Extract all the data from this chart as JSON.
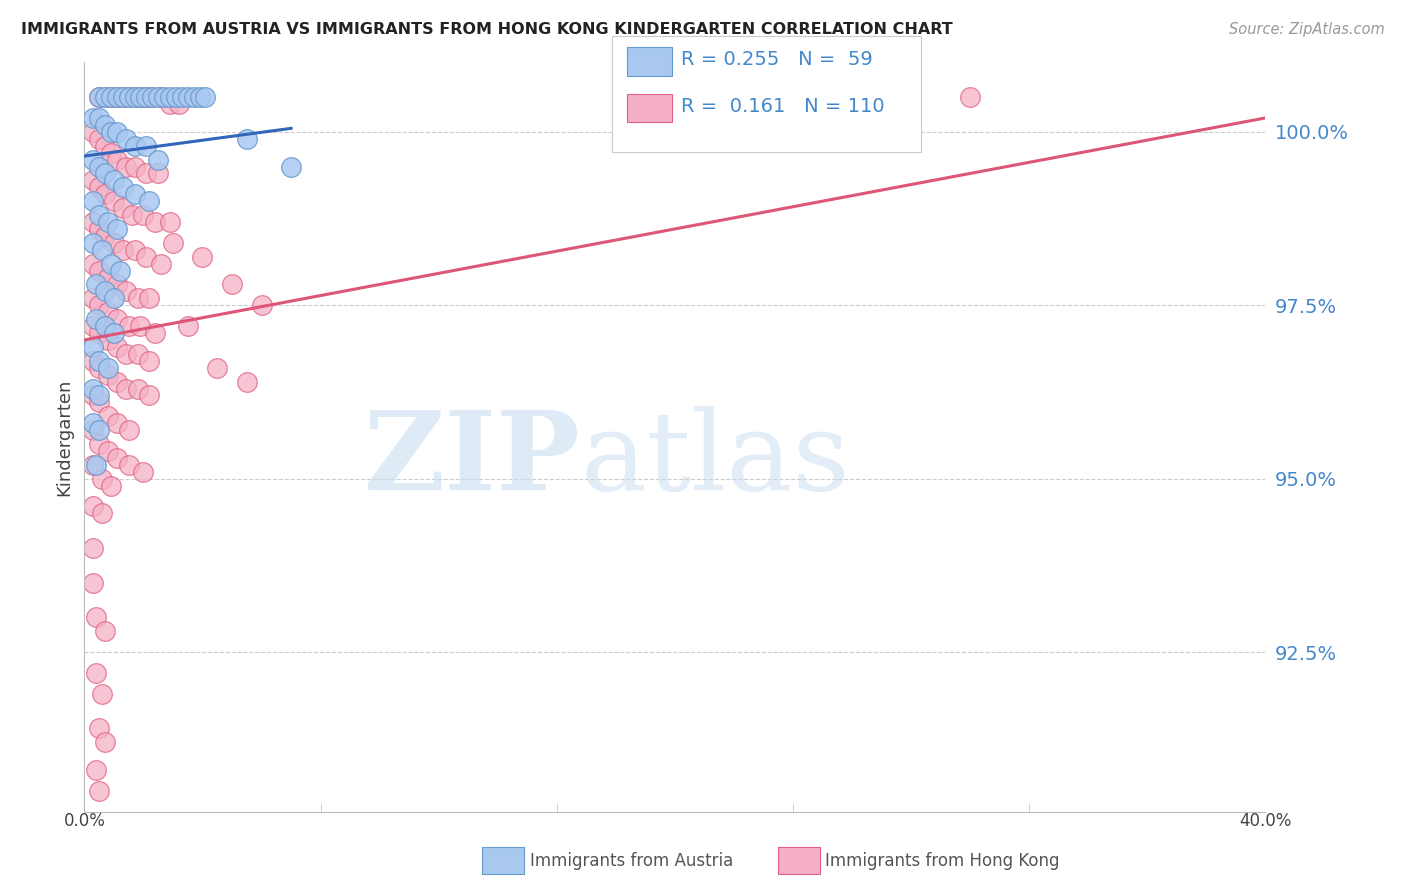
{
  "title": "IMMIGRANTS FROM AUSTRIA VS IMMIGRANTS FROM HONG KONG KINDERGARTEN CORRELATION CHART",
  "source": "Source: ZipAtlas.com",
  "ylabel": "Kindergarten",
  "xlim": [
    0.0,
    40.0
  ],
  "ylim": [
    90.2,
    101.0
  ],
  "ytick_vals": [
    92.5,
    95.0,
    97.5,
    100.0
  ],
  "austria_color": "#A8C8F0",
  "austria_edge": "#6699CC",
  "hongkong_color": "#F5B0C5",
  "hongkong_edge": "#E06080",
  "trendline_austria_color": "#3366BB",
  "trendline_hongkong_color": "#DD5577",
  "austria_trend": [
    0.0,
    99.65,
    7.0,
    100.05
  ],
  "hongkong_trend": [
    0.0,
    97.0,
    40.0,
    100.2
  ],
  "legend_text_color": "#4488CC",
  "watermark_color": "#C8DCF0",
  "austria_scatter": [
    [
      0.5,
      100.5
    ],
    [
      0.7,
      100.5
    ],
    [
      0.9,
      100.5
    ],
    [
      1.1,
      100.5
    ],
    [
      1.3,
      100.5
    ],
    [
      1.5,
      100.5
    ],
    [
      1.7,
      100.5
    ],
    [
      1.9,
      100.5
    ],
    [
      2.1,
      100.5
    ],
    [
      2.3,
      100.5
    ],
    [
      2.5,
      100.5
    ],
    [
      2.7,
      100.5
    ],
    [
      2.9,
      100.5
    ],
    [
      3.1,
      100.5
    ],
    [
      3.3,
      100.5
    ],
    [
      3.5,
      100.5
    ],
    [
      3.7,
      100.5
    ],
    [
      3.9,
      100.5
    ],
    [
      4.1,
      100.5
    ],
    [
      0.3,
      100.2
    ],
    [
      0.5,
      100.2
    ],
    [
      0.7,
      100.1
    ],
    [
      0.9,
      100.0
    ],
    [
      1.1,
      100.0
    ],
    [
      1.4,
      99.9
    ],
    [
      1.7,
      99.8
    ],
    [
      2.1,
      99.8
    ],
    [
      0.3,
      99.6
    ],
    [
      0.5,
      99.5
    ],
    [
      0.7,
      99.4
    ],
    [
      1.0,
      99.3
    ],
    [
      1.3,
      99.2
    ],
    [
      1.7,
      99.1
    ],
    [
      2.2,
      99.0
    ],
    [
      0.3,
      99.0
    ],
    [
      0.5,
      98.8
    ],
    [
      0.8,
      98.7
    ],
    [
      1.1,
      98.6
    ],
    [
      0.3,
      98.4
    ],
    [
      0.6,
      98.3
    ],
    [
      0.9,
      98.1
    ],
    [
      1.2,
      98.0
    ],
    [
      0.4,
      97.8
    ],
    [
      0.7,
      97.7
    ],
    [
      1.0,
      97.6
    ],
    [
      0.4,
      97.3
    ],
    [
      0.7,
      97.2
    ],
    [
      1.0,
      97.1
    ],
    [
      0.3,
      96.9
    ],
    [
      0.5,
      96.7
    ],
    [
      0.8,
      96.6
    ],
    [
      0.3,
      96.3
    ],
    [
      0.5,
      96.2
    ],
    [
      0.3,
      95.8
    ],
    [
      0.5,
      95.7
    ],
    [
      0.4,
      95.2
    ],
    [
      2.5,
      99.6
    ],
    [
      5.5,
      99.9
    ],
    [
      7.0,
      99.5
    ]
  ],
  "hongkong_scatter": [
    [
      0.5,
      100.5
    ],
    [
      0.7,
      100.5
    ],
    [
      0.9,
      100.5
    ],
    [
      1.1,
      100.5
    ],
    [
      1.3,
      100.5
    ],
    [
      1.5,
      100.5
    ],
    [
      1.7,
      100.5
    ],
    [
      1.9,
      100.5
    ],
    [
      2.1,
      100.5
    ],
    [
      2.3,
      100.5
    ],
    [
      2.6,
      100.5
    ],
    [
      2.9,
      100.4
    ],
    [
      3.2,
      100.4
    ],
    [
      30.0,
      100.5
    ],
    [
      0.3,
      100.0
    ],
    [
      0.5,
      99.9
    ],
    [
      0.7,
      99.8
    ],
    [
      0.9,
      99.7
    ],
    [
      1.1,
      99.6
    ],
    [
      1.4,
      99.5
    ],
    [
      1.7,
      99.5
    ],
    [
      2.1,
      99.4
    ],
    [
      2.5,
      99.4
    ],
    [
      0.3,
      99.3
    ],
    [
      0.5,
      99.2
    ],
    [
      0.7,
      99.1
    ],
    [
      1.0,
      99.0
    ],
    [
      1.3,
      98.9
    ],
    [
      1.6,
      98.8
    ],
    [
      2.0,
      98.8
    ],
    [
      2.4,
      98.7
    ],
    [
      2.9,
      98.7
    ],
    [
      0.3,
      98.7
    ],
    [
      0.5,
      98.6
    ],
    [
      0.7,
      98.5
    ],
    [
      1.0,
      98.4
    ],
    [
      1.3,
      98.3
    ],
    [
      1.7,
      98.3
    ],
    [
      2.1,
      98.2
    ],
    [
      2.6,
      98.1
    ],
    [
      0.3,
      98.1
    ],
    [
      0.5,
      98.0
    ],
    [
      0.8,
      97.9
    ],
    [
      1.1,
      97.8
    ],
    [
      1.4,
      97.7
    ],
    [
      1.8,
      97.6
    ],
    [
      2.2,
      97.6
    ],
    [
      0.3,
      97.6
    ],
    [
      0.5,
      97.5
    ],
    [
      0.8,
      97.4
    ],
    [
      1.1,
      97.3
    ],
    [
      1.5,
      97.2
    ],
    [
      1.9,
      97.2
    ],
    [
      2.4,
      97.1
    ],
    [
      0.3,
      97.2
    ],
    [
      0.5,
      97.1
    ],
    [
      0.8,
      97.0
    ],
    [
      1.1,
      96.9
    ],
    [
      1.4,
      96.8
    ],
    [
      1.8,
      96.8
    ],
    [
      2.2,
      96.7
    ],
    [
      0.3,
      96.7
    ],
    [
      0.5,
      96.6
    ],
    [
      0.8,
      96.5
    ],
    [
      1.1,
      96.4
    ],
    [
      1.4,
      96.3
    ],
    [
      1.8,
      96.3
    ],
    [
      2.2,
      96.2
    ],
    [
      0.3,
      96.2
    ],
    [
      0.5,
      96.1
    ],
    [
      0.8,
      95.9
    ],
    [
      1.1,
      95.8
    ],
    [
      1.5,
      95.7
    ],
    [
      0.3,
      95.7
    ],
    [
      0.5,
      95.5
    ],
    [
      0.8,
      95.4
    ],
    [
      1.1,
      95.3
    ],
    [
      1.5,
      95.2
    ],
    [
      2.0,
      95.1
    ],
    [
      0.3,
      95.2
    ],
    [
      0.6,
      95.0
    ],
    [
      0.9,
      94.9
    ],
    [
      0.3,
      94.6
    ],
    [
      0.6,
      94.5
    ],
    [
      0.3,
      94.0
    ],
    [
      0.3,
      93.5
    ],
    [
      0.4,
      93.0
    ],
    [
      0.7,
      92.8
    ],
    [
      0.4,
      92.2
    ],
    [
      0.6,
      91.9
    ],
    [
      0.5,
      91.4
    ],
    [
      0.7,
      91.2
    ],
    [
      0.4,
      90.8
    ],
    [
      0.5,
      90.5
    ],
    [
      3.0,
      98.4
    ],
    [
      4.0,
      98.2
    ],
    [
      5.0,
      97.8
    ],
    [
      6.0,
      97.5
    ],
    [
      4.5,
      96.6
    ],
    [
      5.5,
      96.4
    ],
    [
      3.5,
      97.2
    ]
  ]
}
